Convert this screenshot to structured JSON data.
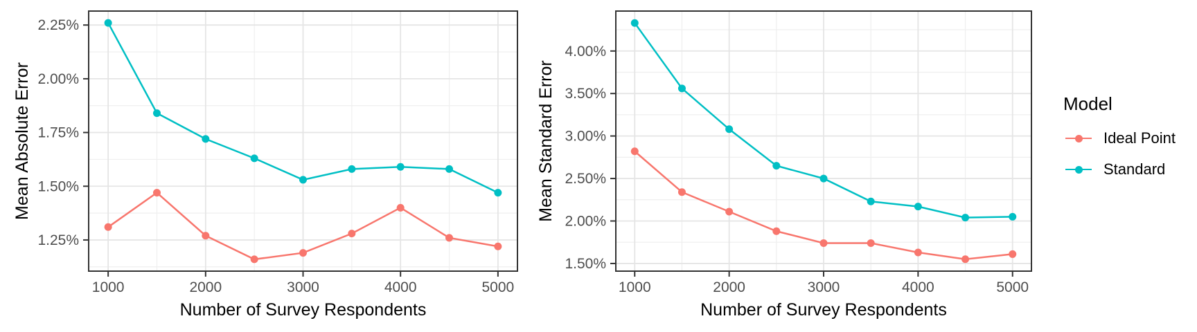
{
  "figure": {
    "legend": {
      "title": "Model",
      "items": [
        {
          "label": "Ideal Point",
          "color": "#F8766D"
        },
        {
          "label": "Standard",
          "color": "#00BFC4"
        }
      ],
      "position": "right"
    },
    "colors": {
      "grid_major": "#E5E5E5",
      "grid_minor": "#EFEFEF",
      "panel_border": "#333333",
      "tick_mark": "#333333",
      "tick_text": "#4D4D4D",
      "axis_title_text": "#000000",
      "background": "#FFFFFF"
    }
  },
  "chart_data": [
    {
      "type": "line",
      "title": "",
      "xlabel": "Number of Survey Respondents",
      "ylabel": "Mean Absolute Error",
      "x": [
        1000,
        1500,
        2000,
        2500,
        3000,
        3500,
        4000,
        4500,
        5000
      ],
      "series": [
        {
          "name": "Ideal Point",
          "color": "#F8766D",
          "values": [
            1.31,
            1.47,
            1.27,
            1.16,
            1.19,
            1.28,
            1.4,
            1.26,
            1.22
          ]
        },
        {
          "name": "Standard",
          "color": "#00BFC4",
          "values": [
            2.26,
            1.84,
            1.72,
            1.63,
            1.53,
            1.58,
            1.59,
            1.58,
            1.47
          ]
        }
      ],
      "unit": "%",
      "xlim": [
        800,
        5200
      ],
      "ylim": [
        1.105,
        2.315
      ],
      "x_ticks": [
        1000,
        2000,
        3000,
        4000,
        5000
      ],
      "x_tick_labels": [
        "1000",
        "2000",
        "3000",
        "4000",
        "5000"
      ],
      "y_ticks": [
        1.25,
        1.5,
        1.75,
        2.0,
        2.25
      ],
      "y_tick_labels": [
        "1.25%",
        "1.50%",
        "1.75%",
        "2.00%",
        "2.25%"
      ],
      "grid": "major+minor",
      "legend_position": "shared-right"
    },
    {
      "type": "line",
      "title": "",
      "xlabel": "Number of Survey Respondents",
      "ylabel": "Mean Standard Error",
      "x": [
        1000,
        1500,
        2000,
        2500,
        3000,
        3500,
        4000,
        4500,
        5000
      ],
      "series": [
        {
          "name": "Ideal Point",
          "color": "#F8766D",
          "values": [
            2.82,
            2.34,
            2.11,
            1.88,
            1.74,
            1.74,
            1.63,
            1.55,
            1.61
          ]
        },
        {
          "name": "Standard",
          "color": "#00BFC4",
          "values": [
            4.33,
            3.56,
            3.08,
            2.65,
            2.5,
            2.23,
            2.17,
            2.04,
            2.05
          ]
        }
      ],
      "unit": "%",
      "xlim": [
        800,
        5200
      ],
      "ylim": [
        1.41,
        4.47
      ],
      "x_ticks": [
        1000,
        2000,
        3000,
        4000,
        5000
      ],
      "x_tick_labels": [
        "1000",
        "2000",
        "3000",
        "4000",
        "5000"
      ],
      "y_ticks": [
        1.5,
        2.0,
        2.5,
        3.0,
        3.5,
        4.0
      ],
      "y_tick_labels": [
        "1.50%",
        "2.00%",
        "2.50%",
        "3.00%",
        "3.50%",
        "4.00%"
      ],
      "grid": "major+minor",
      "legend_position": "shared-right"
    }
  ]
}
